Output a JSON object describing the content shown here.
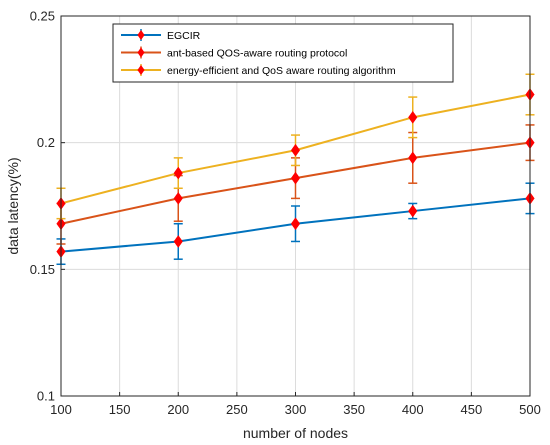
{
  "chart_data": {
    "type": "line",
    "xlabel": "number of nodes",
    "ylabel": "data latency(%)",
    "xlim": [
      100,
      500
    ],
    "ylim": [
      0.1,
      0.25
    ],
    "xticks": [
      100,
      150,
      200,
      250,
      300,
      350,
      400,
      450,
      500
    ],
    "yticks": [
      0.1,
      0.15,
      0.2,
      0.25
    ],
    "ytick_labels": [
      "0.1",
      "0.15",
      "0.2",
      "0.25"
    ],
    "grid": true,
    "legend_position": "top-left",
    "x": [
      100,
      200,
      300,
      400,
      500
    ],
    "series": [
      {
        "name": "EGCIR",
        "color": "#0072BD",
        "values": [
          0.157,
          0.161,
          0.168,
          0.173,
          0.178
        ],
        "error_low": [
          0.005,
          0.007,
          0.007,
          0.003,
          0.006
        ],
        "error_high": [
          0.005,
          0.007,
          0.007,
          0.003,
          0.006
        ]
      },
      {
        "name": "ant-based QOS-aware routing protocol",
        "color": "#D95319",
        "values": [
          0.168,
          0.178,
          0.186,
          0.194,
          0.2
        ],
        "error_low": [
          0.008,
          0.009,
          0.008,
          0.01,
          0.007
        ],
        "error_high": [
          0.008,
          0.009,
          0.008,
          0.01,
          0.007
        ]
      },
      {
        "name": "energy-efficient and QoS aware routing algorithm",
        "color": "#EDB120",
        "values": [
          0.176,
          0.188,
          0.197,
          0.21,
          0.219
        ],
        "error_low": [
          0.006,
          0.006,
          0.006,
          0.008,
          0.008
        ],
        "error_high": [
          0.006,
          0.006,
          0.006,
          0.008,
          0.008
        ]
      }
    ],
    "marker_color": "#FF0000"
  }
}
